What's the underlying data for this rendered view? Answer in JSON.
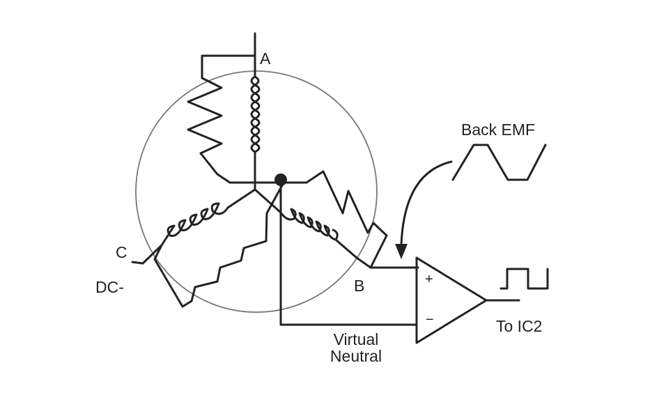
{
  "labels": {
    "phase_a": "A",
    "phase_b": "B",
    "phase_c": "C",
    "dc_minus": "DC-",
    "back_emf": "Back EMF",
    "virtual_line1": "Virtual",
    "virtual_line2": "Neutral",
    "to_ic2": "To IC2",
    "plus": "+",
    "minus": "−"
  },
  "colors": {
    "stroke": "#222222",
    "rotor": "#777777",
    "background": "#ffffff"
  }
}
